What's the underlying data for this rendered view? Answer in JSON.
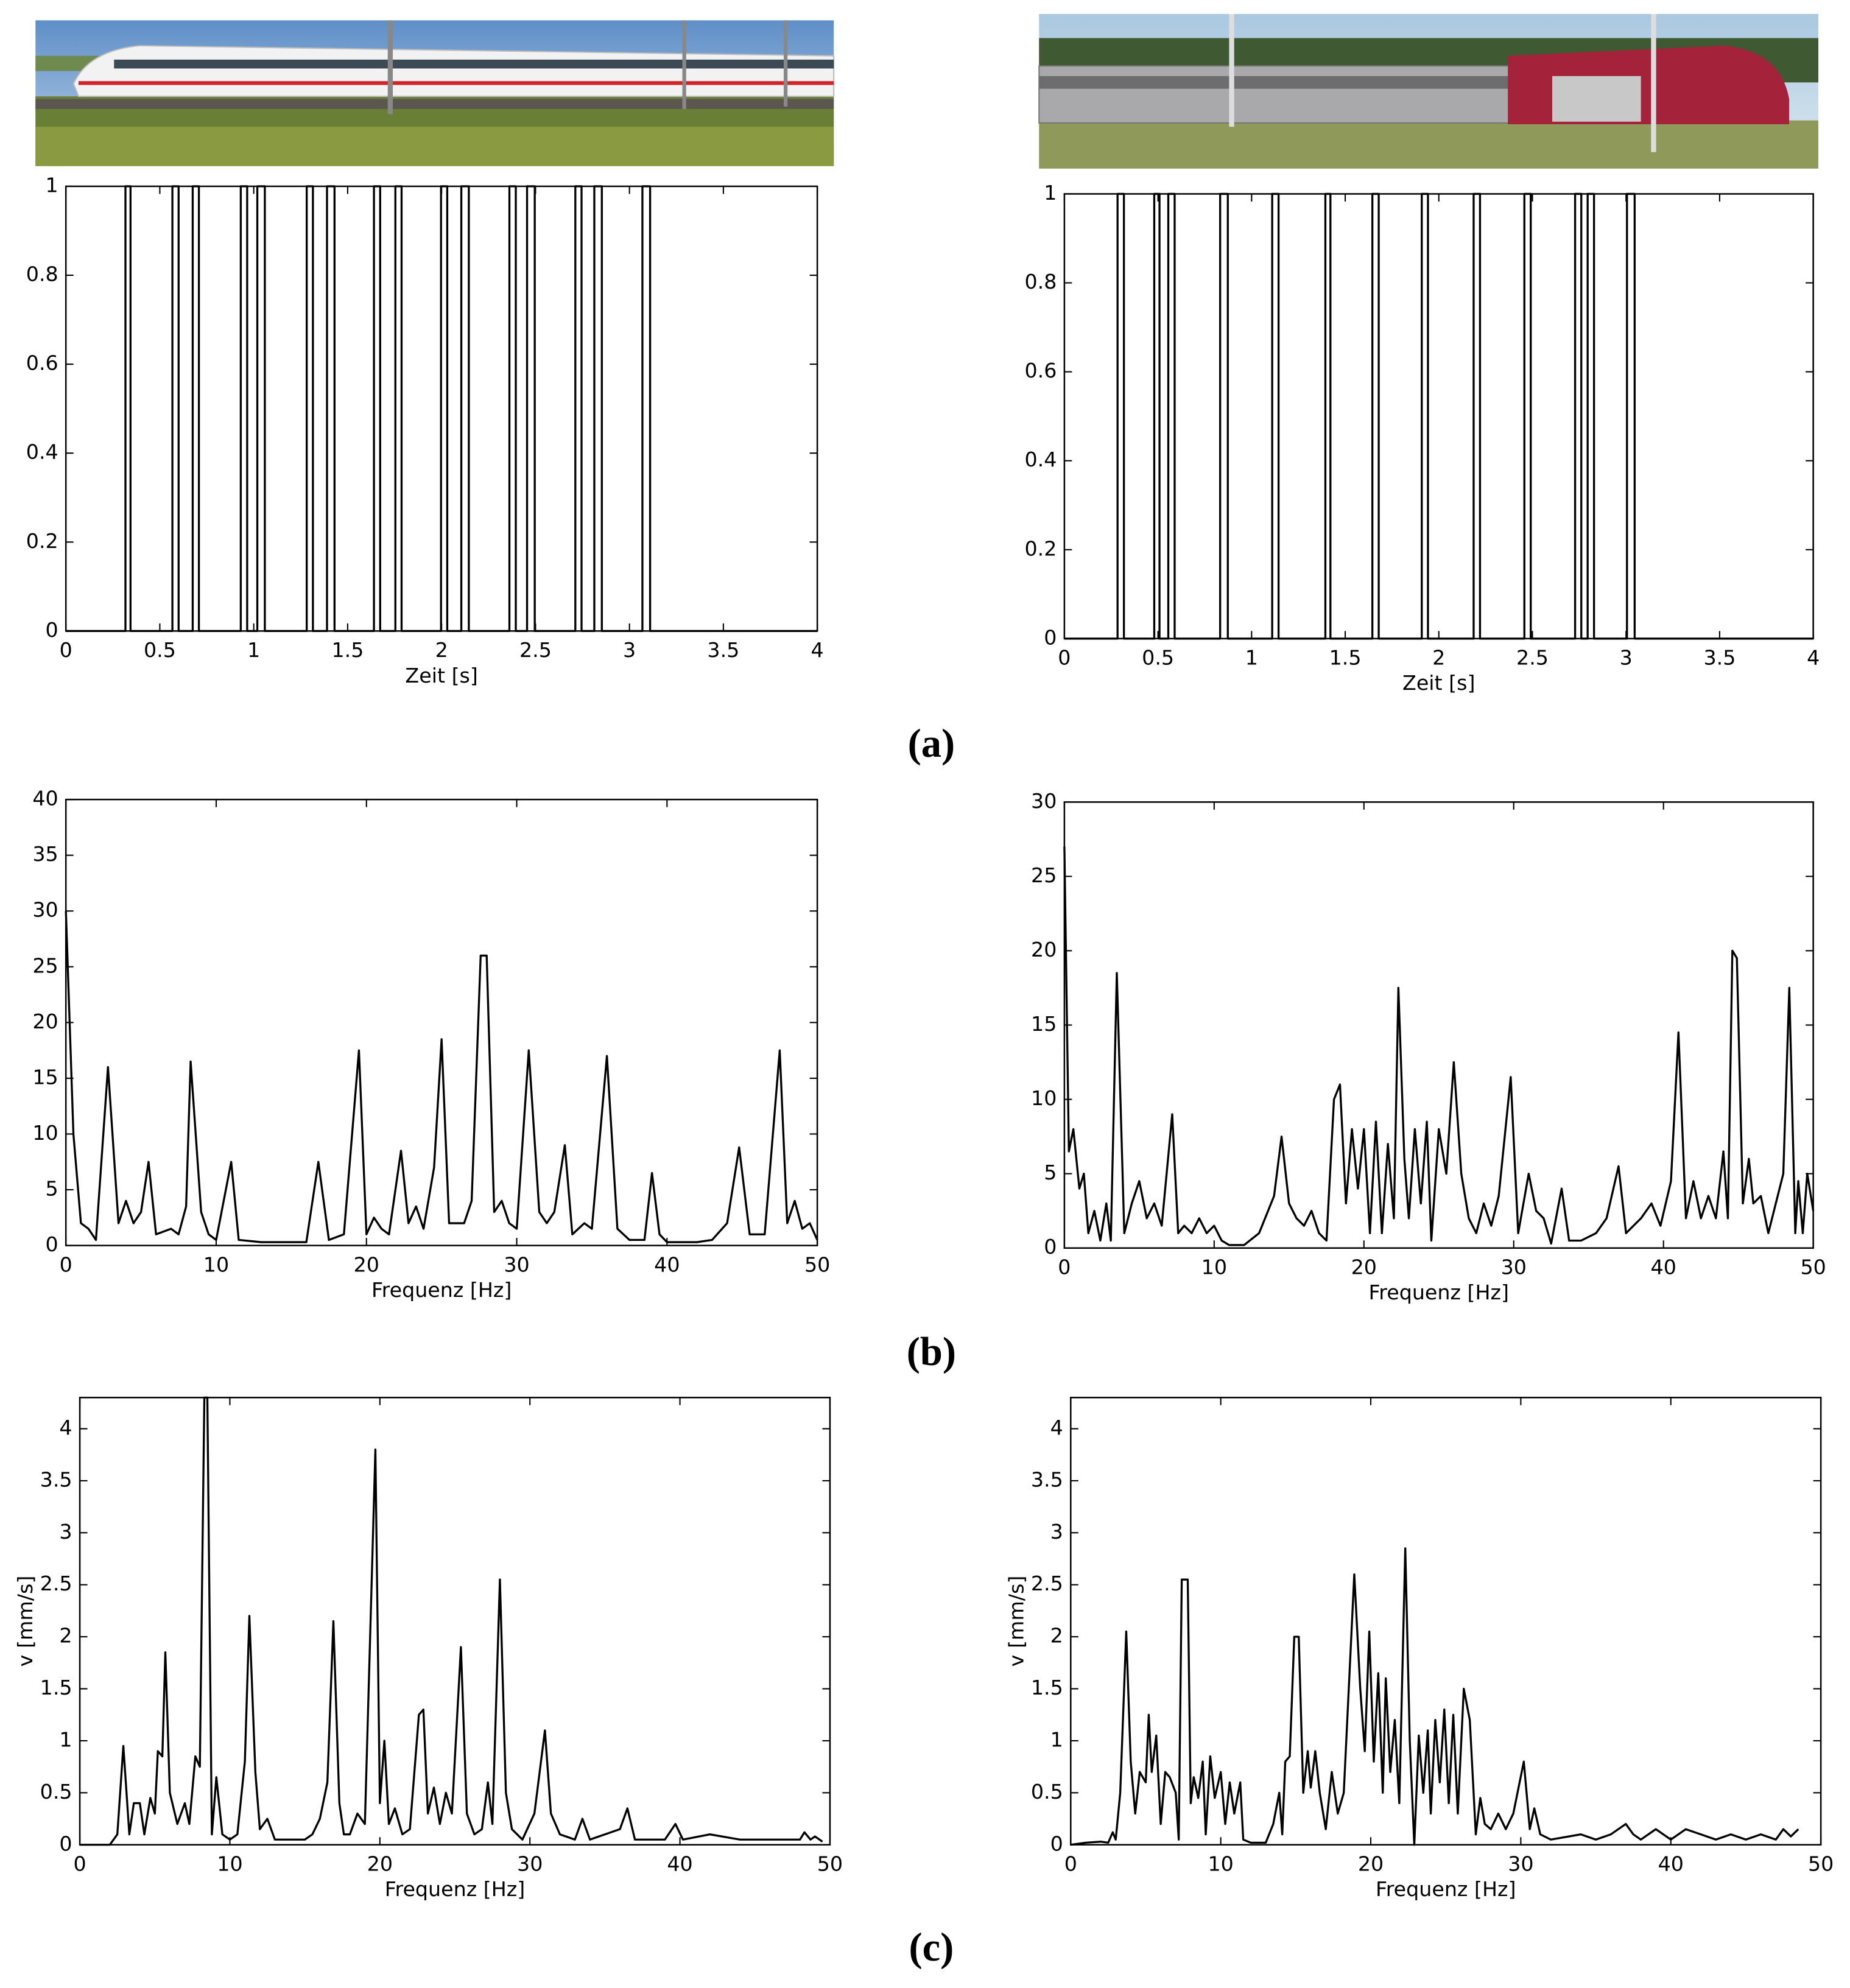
{
  "chart_data": [
    {
      "type": "line",
      "xlabel": "Zeit [s]",
      "color": "#000000",
      "xlim": [
        0,
        4
      ],
      "ylim": [
        0,
        1
      ],
      "xticks": [
        0,
        0.5,
        1,
        1.5,
        2,
        2.5,
        3,
        3.5,
        4
      ],
      "yticks": [
        0,
        0.2,
        0.4,
        0.6,
        0.8,
        1
      ],
      "x": [
        0,
        0.317,
        0.317,
        0.344,
        0.344,
        0.567,
        0.567,
        0.6,
        0.6,
        0.675,
        0.675,
        0.708,
        0.708,
        0.931,
        0.931,
        0.965,
        0.965,
        1.019,
        1.019,
        1.059,
        1.059,
        1.282,
        1.282,
        1.315,
        1.315,
        1.39,
        1.39,
        1.43,
        1.43,
        1.64,
        1.64,
        1.673,
        1.673,
        1.754,
        1.754,
        1.787,
        1.787,
        1.997,
        1.997,
        2.03,
        2.03,
        2.105,
        2.105,
        2.145,
        2.145,
        2.361,
        2.361,
        2.395,
        2.395,
        2.455,
        2.455,
        2.496,
        2.496,
        2.712,
        2.712,
        2.745,
        2.745,
        2.813,
        2.813,
        2.853,
        2.853,
        3.069,
        3.069,
        3.11,
        3.11,
        4
      ],
      "values": [
        0,
        0,
        1,
        1,
        0,
        0,
        1,
        1,
        0,
        0,
        1,
        1,
        0,
        0,
        1,
        1,
        0,
        0,
        1,
        1,
        0,
        0,
        1,
        1,
        0,
        0,
        1,
        1,
        0,
        0,
        1,
        1,
        0,
        0,
        1,
        1,
        0,
        0,
        1,
        1,
        0,
        0,
        1,
        1,
        0,
        0,
        1,
        1,
        0,
        0,
        1,
        1,
        0,
        0,
        1,
        1,
        0,
        0,
        1,
        1,
        0,
        0,
        1,
        1,
        0,
        0
      ]
    },
    {
      "type": "line",
      "xlabel": "Zeit [s]",
      "color": "#000000",
      "xlim": [
        0,
        4
      ],
      "ylim": [
        0,
        1
      ],
      "xticks": [
        0,
        0.5,
        1,
        1.5,
        2,
        2.5,
        3,
        3.5,
        4
      ],
      "yticks": [
        0,
        0.2,
        0.4,
        0.6,
        0.8,
        1
      ],
      "x": [
        0,
        0.284,
        0.284,
        0.318,
        0.318,
        0.48,
        0.48,
        0.508,
        0.508,
        0.555,
        0.555,
        0.589,
        0.589,
        0.832,
        0.832,
        0.873,
        0.873,
        1.11,
        1.11,
        1.144,
        1.144,
        1.394,
        1.394,
        1.421,
        1.421,
        1.645,
        1.645,
        1.679,
        1.679,
        1.909,
        1.909,
        1.942,
        1.942,
        2.186,
        2.186,
        2.22,
        2.22,
        2.457,
        2.457,
        2.491,
        2.491,
        2.728,
        2.728,
        2.761,
        2.761,
        2.795,
        2.795,
        2.829,
        2.829,
        3.005,
        3.005,
        3.046,
        3.046,
        4
      ],
      "values": [
        0,
        0,
        1,
        1,
        0,
        0,
        1,
        1,
        0,
        0,
        1,
        1,
        0,
        0,
        1,
        1,
        0,
        0,
        1,
        1,
        0,
        0,
        1,
        1,
        0,
        0,
        1,
        1,
        0,
        0,
        1,
        1,
        0,
        0,
        1,
        1,
        0,
        0,
        1,
        1,
        0,
        0,
        1,
        1,
        0,
        0,
        1,
        1,
        0,
        0,
        1,
        1,
        0,
        0
      ]
    },
    {
      "type": "line",
      "xlabel": "Frequenz [Hz]",
      "color": "#000000",
      "xlim": [
        0,
        50
      ],
      "ylim": [
        0,
        40
      ],
      "xticks": [
        0,
        10,
        20,
        30,
        40,
        50
      ],
      "yticks": [
        0,
        5,
        10,
        15,
        20,
        25,
        30,
        35,
        40
      ],
      "x": [
        0,
        0.5,
        1,
        1.5,
        2,
        2.8,
        3.5,
        4,
        4.5,
        5,
        5.5,
        6,
        7,
        7.5,
        8,
        8.3,
        9,
        9.5,
        10,
        11,
        11.5,
        13,
        16,
        16.8,
        17.5,
        18.5,
        19.5,
        20,
        20.5,
        21,
        21.5,
        22.3,
        22.8,
        23.3,
        23.8,
        24.5,
        25,
        25.5,
        26.5,
        27,
        27.6,
        28,
        28.5,
        29,
        29.5,
        30,
        30.8,
        31.5,
        32,
        32.5,
        33.2,
        33.7,
        34.5,
        35,
        36,
        36.7,
        37.5,
        38.5,
        39,
        39.5,
        40,
        42,
        43,
        44,
        44.8,
        45.5,
        46.5,
        47.5,
        48,
        48.5,
        49,
        49.5,
        50
      ],
      "values": [
        30,
        10,
        2,
        1.5,
        0.5,
        16,
        2,
        4,
        2,
        3,
        7.5,
        1,
        1.5,
        1,
        3.5,
        16.5,
        3,
        1,
        0.5,
        7.5,
        0.5,
        0.3,
        0.3,
        7.5,
        0.5,
        1,
        17.5,
        1,
        2.5,
        1.5,
        1,
        8.5,
        2,
        3.5,
        1.5,
        7,
        18.5,
        2,
        2,
        4,
        26,
        26,
        3,
        4,
        2,
        1.5,
        17.5,
        3,
        2,
        3,
        9,
        1,
        2,
        1.5,
        17,
        1.5,
        0.5,
        0.5,
        6.5,
        1,
        0.3,
        0.3,
        0.5,
        2,
        8.8,
        1,
        1,
        17.5,
        2,
        4,
        1.5,
        2,
        0.5
      ]
    },
    {
      "type": "line",
      "xlabel": "Frequenz [Hz]",
      "color": "#000000",
      "xlim": [
        0,
        50
      ],
      "ylim": [
        0,
        30
      ],
      "xticks": [
        0,
        10,
        20,
        30,
        40,
        50
      ],
      "yticks": [
        0,
        5,
        10,
        15,
        20,
        25,
        30
      ],
      "x": [
        0,
        0.3,
        0.6,
        1,
        1.3,
        1.6,
        2,
        2.4,
        2.8,
        3.1,
        3.5,
        4,
        4.5,
        5,
        5.5,
        6,
        6.5,
        7.2,
        7.6,
        8,
        8.5,
        9,
        9.5,
        10,
        10.5,
        11,
        12,
        13,
        14,
        14.5,
        15,
        15.5,
        16,
        16.5,
        17,
        17.5,
        18,
        18.4,
        18.8,
        19.2,
        19.6,
        20,
        20.4,
        20.8,
        21.2,
        21.6,
        22,
        22.3,
        22.7,
        23,
        23.4,
        23.8,
        24.2,
        24.5,
        25,
        25.5,
        26,
        26.5,
        27,
        27.5,
        28,
        28.5,
        29,
        29.8,
        30.3,
        31,
        31.5,
        32,
        32.5,
        33.2,
        33.7,
        34.5,
        35.5,
        36.2,
        37,
        37.5,
        38.5,
        39.2,
        39.8,
        40.5,
        41,
        41.5,
        42,
        42.5,
        43,
        43.5,
        44,
        44.3,
        44.6,
        44.9,
        45.3,
        45.7,
        46,
        46.5,
        47,
        47.5,
        48,
        48.4,
        48.8,
        49,
        49.3,
        49.6,
        50
      ],
      "values": [
        27,
        6.5,
        8,
        4,
        5,
        1,
        2.5,
        0.5,
        3,
        0.5,
        18.5,
        1,
        3,
        4.5,
        2,
        3,
        1.5,
        9,
        1,
        1.5,
        1,
        2,
        1,
        1.5,
        0.5,
        0.2,
        0.2,
        1,
        3.5,
        7.5,
        3,
        2,
        1.5,
        2.5,
        1,
        0.5,
        10,
        11,
        3,
        8,
        4,
        8,
        1,
        8.5,
        1,
        7,
        2,
        17.5,
        6,
        2,
        8,
        3,
        8.5,
        0.5,
        8,
        5,
        12.5,
        5,
        2,
        1,
        3,
        1.5,
        3.5,
        11.5,
        1,
        5,
        2.5,
        2,
        0.3,
        4,
        0.5,
        0.5,
        1,
        2,
        5.5,
        1,
        2,
        3,
        1.5,
        4.5,
        14.5,
        2,
        4.5,
        2,
        3.5,
        2,
        6.5,
        2,
        20,
        19.5,
        3,
        6,
        3,
        3.5,
        1,
        3,
        5,
        17.5,
        1,
        4.5,
        1,
        5,
        2.5
      ]
    },
    {
      "type": "line",
      "xlabel": "Frequenz [Hz]",
      "ylabel": "v [mm/s]",
      "color": "#000000",
      "xlim": [
        0,
        50
      ],
      "ylim": [
        0,
        4.3
      ],
      "xticks": [
        0,
        10,
        20,
        30,
        40,
        50
      ],
      "yticks": [
        0,
        0.5,
        1,
        1.5,
        2,
        2.5,
        3,
        3.5,
        4
      ],
      "x": [
        0,
        2,
        2.5,
        2.9,
        3.3,
        3.6,
        4,
        4.3,
        4.7,
        5,
        5.2,
        5.5,
        5.7,
        6,
        6.5,
        7,
        7.3,
        7.7,
        8,
        8.3,
        8.5,
        8.8,
        9.1,
        9.5,
        10,
        10.5,
        11,
        11.3,
        11.7,
        12,
        12.5,
        13,
        14,
        15,
        15.5,
        16,
        16.5,
        16.9,
        17.3,
        17.6,
        18,
        18.5,
        19,
        19.7,
        20,
        20.3,
        20.6,
        21,
        21.5,
        22,
        22.6,
        22.9,
        23.2,
        23.6,
        24,
        24.4,
        24.8,
        25.4,
        25.8,
        26.3,
        26.8,
        27.2,
        27.5,
        28,
        28.4,
        28.8,
        29.5,
        30.3,
        31,
        31.4,
        32,
        33,
        33.5,
        34,
        35,
        36,
        36.5,
        37,
        38,
        39,
        39.7,
        40.2,
        42,
        44,
        46,
        47,
        48,
        48.3,
        48.7,
        49,
        49.5
      ],
      "values": [
        0,
        0,
        0.1,
        0.95,
        0.1,
        0.4,
        0.4,
        0.1,
        0.45,
        0.3,
        0.9,
        0.85,
        1.85,
        0.5,
        0.2,
        0.4,
        0.2,
        0.85,
        0.75,
        4.3,
        4.3,
        0.1,
        0.65,
        0.1,
        0.05,
        0.1,
        0.8,
        2.2,
        0.7,
        0.15,
        0.25,
        0.05,
        0.05,
        0.05,
        0.1,
        0.25,
        0.6,
        2.15,
        0.4,
        0.1,
        0.1,
        0.3,
        0.2,
        3.8,
        0.4,
        1,
        0.2,
        0.35,
        0.1,
        0.15,
        1.25,
        1.3,
        0.3,
        0.55,
        0.2,
        0.5,
        0.3,
        1.9,
        0.3,
        0.1,
        0.15,
        0.6,
        0.2,
        2.55,
        0.5,
        0.15,
        0.05,
        0.3,
        1.1,
        0.3,
        0.1,
        0.05,
        0.25,
        0.05,
        0.1,
        0.15,
        0.35,
        0.05,
        0.05,
        0.05,
        0.2,
        0.05,
        0.1,
        0.05,
        0.05,
        0.05,
        0.05,
        0.12,
        0.05,
        0.08,
        0.03
      ]
    },
    {
      "type": "line",
      "xlabel": "Frequenz [Hz]",
      "ylabel": "v [mm/s]",
      "color": "#000000",
      "xlim": [
        0,
        50
      ],
      "ylim": [
        0,
        4.3
      ],
      "xticks": [
        0,
        10,
        20,
        30,
        40,
        50
      ],
      "yticks": [
        0,
        0.5,
        1,
        1.5,
        2,
        2.5,
        3,
        3.5,
        4
      ],
      "x": [
        0,
        1,
        2,
        2.5,
        2.8,
        3,
        3.3,
        3.7,
        4,
        4.3,
        4.6,
        5,
        5.2,
        5.4,
        5.7,
        6,
        6.3,
        6.6,
        7,
        7.2,
        7.4,
        7.8,
        8,
        8.2,
        8.5,
        8.8,
        9,
        9.3,
        9.6,
        10,
        10.3,
        10.6,
        10.9,
        11.3,
        11.5,
        12,
        13,
        13.5,
        13.9,
        14.1,
        14.3,
        14.6,
        14.9,
        15.2,
        15.5,
        15.8,
        16,
        16.3,
        16.6,
        17,
        17.4,
        17.8,
        18.2,
        18.9,
        19.3,
        19.6,
        19.9,
        20.2,
        20.5,
        20.8,
        21,
        21.3,
        21.6,
        21.9,
        22.3,
        22.6,
        22.9,
        23.2,
        23.5,
        23.8,
        24,
        24.3,
        24.6,
        24.9,
        25.2,
        25.5,
        25.8,
        26.2,
        26.6,
        27,
        27.3,
        27.6,
        28,
        28.5,
        29,
        29.5,
        30.2,
        30.6,
        30.9,
        31.3,
        32,
        34,
        35,
        36,
        37,
        37.5,
        38,
        39,
        40,
        41,
        42,
        43,
        44,
        45,
        46,
        47,
        47.5,
        48,
        48.5
      ],
      "values": [
        0,
        0.02,
        0.03,
        0.02,
        0.12,
        0.05,
        0.5,
        2.05,
        0.8,
        0.3,
        0.7,
        0.6,
        1.25,
        0.7,
        1.05,
        0.2,
        0.7,
        0.65,
        0.5,
        0.05,
        2.55,
        2.55,
        0.4,
        0.65,
        0.45,
        0.8,
        0.1,
        0.85,
        0.45,
        0.7,
        0.2,
        0.6,
        0.3,
        0.6,
        0.05,
        0.02,
        0.02,
        0.2,
        0.5,
        0.1,
        0.8,
        0.85,
        2,
        2,
        0.5,
        0.9,
        0.55,
        0.9,
        0.5,
        0.15,
        0.7,
        0.3,
        0.5,
        2.6,
        1.5,
        0.9,
        2.05,
        0.8,
        1.65,
        0.5,
        1.6,
        0.7,
        1.2,
        0.4,
        2.85,
        1,
        0,
        1.05,
        0.5,
        1.1,
        0.3,
        1.2,
        0.6,
        1.3,
        0.4,
        1.25,
        0.3,
        1.5,
        1.2,
        0.1,
        0.45,
        0.2,
        0.15,
        0.3,
        0.15,
        0.3,
        0.8,
        0.15,
        0.35,
        0.1,
        0.05,
        0.1,
        0.05,
        0.1,
        0.2,
        0.1,
        0.05,
        0.15,
        0.05,
        0.15,
        0.1,
        0.05,
        0.1,
        0.05,
        0.1,
        0.05,
        0.15,
        0.08,
        0.15
      ]
    }
  ],
  "panel_labels": [
    "(a)",
    "(b)",
    "(c)"
  ]
}
